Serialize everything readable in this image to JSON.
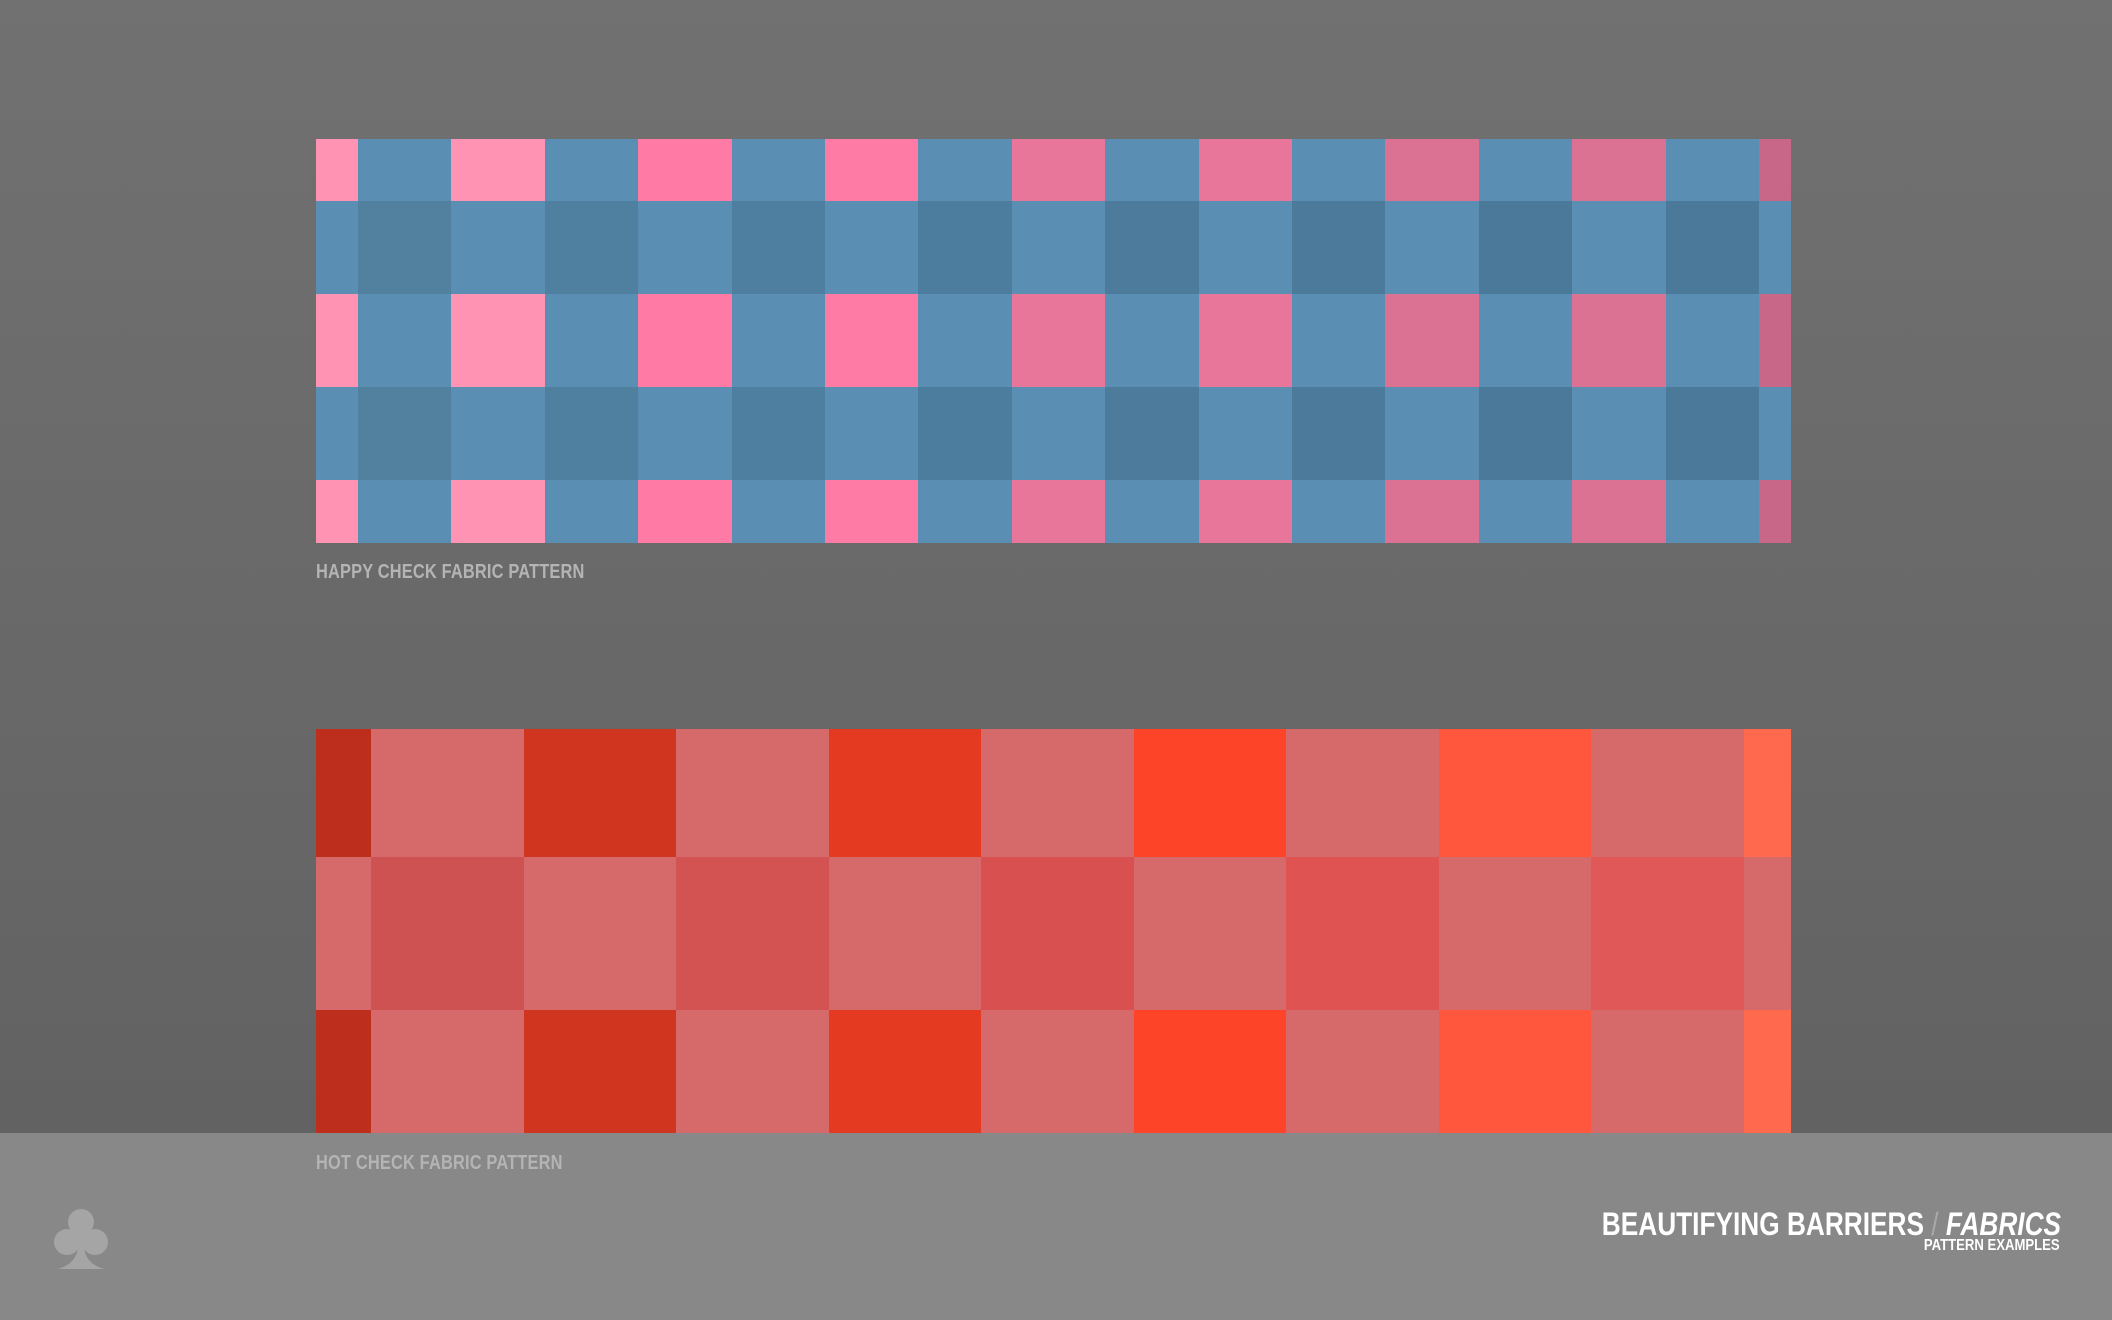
{
  "patterns": {
    "happy": {
      "label": "HAPPY CHECK FABRIC PATTERN",
      "stripe_colors": [
        "#ff93b4",
        "#ff93b4",
        "#ff7ba6",
        "#fd7ba5",
        "#e8759a",
        "#e8759a",
        "#db7193",
        "#db7193",
        "#c96788"
      ],
      "base_color": "#5a8fb3",
      "intersection_colors": [
        "#52819f",
        "#50809f",
        "#4e7fa0",
        "#4d7d9e",
        "#4c7b9c",
        "#4c7a9b",
        "#4b799a",
        "#4b7999"
      ]
    },
    "hot": {
      "label": "HOT CHECK FABRIC PATTERN",
      "stripe_colors": [
        "#be2e1c",
        "#d0361f",
        "#e43a22",
        "#fe4428",
        "#ff573d",
        "#ff6a4e"
      ],
      "base_color": "#d6696a",
      "intersection_colors": [
        "#cf5252",
        "#d35353",
        "#d85050",
        "#df5353",
        "#e05858"
      ]
    }
  },
  "footer": {
    "logo_icon": "club-icon",
    "title_main": "BEAUTIFYING BARRIERS",
    "title_separator": "/",
    "title_section": "FABRICS",
    "subtitle": "PATTERN EXAMPLES"
  }
}
